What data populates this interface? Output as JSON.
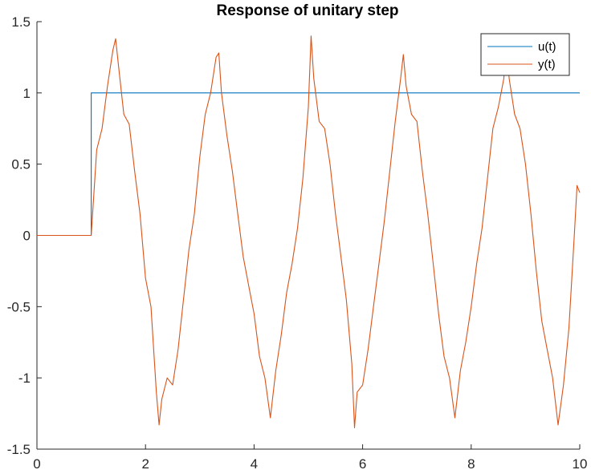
{
  "chart_data": {
    "type": "line",
    "title": "Response of unitary step",
    "xlabel": "",
    "ylabel": "",
    "xlim": [
      0,
      10
    ],
    "ylim": [
      -1.5,
      1.5
    ],
    "x_ticks": [
      0,
      2,
      4,
      6,
      8,
      10
    ],
    "x_tick_labels": [
      "0",
      "2",
      "4",
      "6",
      "8",
      "10"
    ],
    "y_ticks": [
      -1.5,
      -1,
      -0.5,
      0,
      0.5,
      1,
      1.5
    ],
    "y_tick_labels": [
      "-1.5",
      "-1",
      "-0.5",
      "0",
      "0.5",
      "1",
      "1.5"
    ],
    "grid": false,
    "legend_position": "top-right",
    "series": [
      {
        "name": "u(t)",
        "color": "#0072BD",
        "x": [
          0,
          1,
          1,
          10
        ],
        "y": [
          0,
          0,
          1,
          1
        ]
      },
      {
        "name": "y(t)",
        "color": "#D95319",
        "x": [
          0,
          1.0,
          1.05,
          1.1,
          1.2,
          1.3,
          1.4,
          1.45,
          1.5,
          1.6,
          1.7,
          1.8,
          1.9,
          2.0,
          2.1,
          2.2,
          2.25,
          2.3,
          2.4,
          2.5,
          2.6,
          2.7,
          2.8,
          2.9,
          3.0,
          3.1,
          3.2,
          3.3,
          3.35,
          3.4,
          3.5,
          3.6,
          3.7,
          3.8,
          3.9,
          4.0,
          4.1,
          4.2,
          4.3,
          4.4,
          4.5,
          4.6,
          4.7,
          4.8,
          4.9,
          5.0,
          5.05,
          5.1,
          5.2,
          5.3,
          5.4,
          5.5,
          5.6,
          5.7,
          5.8,
          5.85,
          5.9,
          6.0,
          6.1,
          6.2,
          6.3,
          6.4,
          6.5,
          6.6,
          6.7,
          6.75,
          6.8,
          6.9,
          7.0,
          7.1,
          7.2,
          7.3,
          7.4,
          7.5,
          7.6,
          7.7,
          7.8,
          7.9,
          8.0,
          8.1,
          8.2,
          8.3,
          8.4,
          8.5,
          8.6,
          8.65,
          8.7,
          8.8,
          8.9,
          9.0,
          9.1,
          9.2,
          9.3,
          9.4,
          9.5,
          9.6,
          9.7,
          9.8,
          9.9,
          9.95,
          10.0
        ],
        "y": [
          0,
          0,
          0.3,
          0.6,
          0.75,
          1.05,
          1.3,
          1.38,
          1.2,
          0.85,
          0.78,
          0.45,
          0.15,
          -0.3,
          -0.5,
          -1.1,
          -1.33,
          -1.15,
          -1.0,
          -1.05,
          -0.8,
          -0.45,
          -0.1,
          0.15,
          0.55,
          0.85,
          1.0,
          1.25,
          1.28,
          1.0,
          0.7,
          0.45,
          0.15,
          -0.15,
          -0.35,
          -0.55,
          -0.85,
          -1.0,
          -1.28,
          -0.95,
          -0.7,
          -0.4,
          -0.2,
          0.05,
          0.4,
          0.9,
          1.4,
          1.1,
          0.8,
          0.75,
          0.5,
          0.15,
          -0.15,
          -0.45,
          -0.9,
          -1.35,
          -1.1,
          -1.05,
          -0.8,
          -0.5,
          -0.2,
          0.1,
          0.45,
          0.8,
          1.1,
          1.27,
          1.05,
          0.85,
          0.8,
          0.45,
          0.15,
          -0.2,
          -0.55,
          -0.85,
          -1.0,
          -1.28,
          -0.95,
          -0.75,
          -0.5,
          -0.2,
          0.05,
          0.4,
          0.75,
          0.9,
          1.1,
          1.33,
          1.1,
          0.85,
          0.75,
          0.5,
          0.15,
          -0.25,
          -0.6,
          -0.8,
          -1.0,
          -1.33,
          -1.05,
          -0.65,
          0.0,
          0.35,
          0.3
        ]
      }
    ]
  }
}
